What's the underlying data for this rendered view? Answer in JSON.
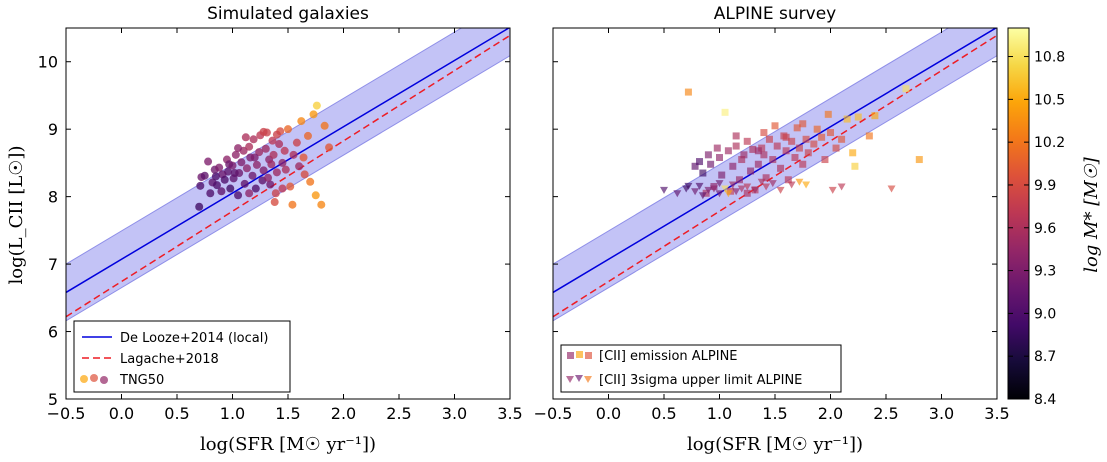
{
  "chart_data": [
    {
      "type": "scatter",
      "title": "Simulated galaxies",
      "xlabel": "log(SFR [M☉ yr⁻¹])",
      "ylabel": "log(L_CII [L☉])",
      "xlim": [
        -0.5,
        3.5
      ],
      "ylim": [
        5,
        10.5
      ],
      "xticks": [
        "−0.5",
        "0.0",
        "0.5",
        "1.0",
        "1.5",
        "2.0",
        "2.5",
        "3.0",
        "3.5"
      ],
      "yticks": [
        "5",
        "6",
        "7",
        "8",
        "9",
        "10"
      ],
      "grid": false,
      "legend_position": "lower-left",
      "relations": [
        {
          "name": "De Looze+2014 (local)",
          "style": "solid",
          "color": "#0000dd",
          "x": [
            -0.5,
            3.5
          ],
          "y": [
            6.58,
            10.51
          ],
          "band_halfwidth": 0.42
        },
        {
          "name": "Lagache+2018",
          "style": "dashed",
          "color": "#ee1c24",
          "x": [
            -0.5,
            3.5
          ],
          "y": [
            6.22,
            10.39
          ]
        }
      ],
      "series": [
        {
          "name": "TNG50",
          "marker": "circle",
          "points": [
            [
              0.7,
              7.85
            ],
            [
              0.71,
              8.16
            ],
            [
              0.72,
              8.29
            ],
            [
              0.75,
              8.31
            ],
            [
              0.78,
              8.52
            ],
            [
              0.8,
              8.05
            ],
            [
              0.82,
              8.21
            ],
            [
              0.84,
              8.4
            ],
            [
              0.86,
              8.17
            ],
            [
              0.88,
              8.43
            ],
            [
              0.9,
              8.08
            ],
            [
              0.91,
              8.33
            ],
            [
              0.93,
              8.25
            ],
            [
              0.95,
              8.55
            ],
            [
              0.96,
              8.37
            ],
            [
              0.98,
              8.12
            ],
            [
              1.0,
              8.46
            ],
            [
              1.01,
              8.27
            ],
            [
              1.03,
              8.62
            ],
            [
              1.05,
              8.02
            ],
            [
              1.06,
              8.35
            ],
            [
              1.08,
              8.51
            ],
            [
              1.1,
              8.68
            ],
            [
              1.11,
              8.19
            ],
            [
              1.13,
              8.42
            ],
            [
              1.15,
              8.74
            ],
            [
              1.16,
              8.58
            ],
            [
              1.18,
              8.31
            ],
            [
              1.19,
              8.85
            ],
            [
              1.21,
              8.12
            ],
            [
              1.22,
              8.47
            ],
            [
              1.24,
              8.66
            ],
            [
              1.25,
              8.91
            ],
            [
              1.27,
              8.24
            ],
            [
              1.28,
              8.39
            ],
            [
              1.3,
              8.71
            ],
            [
              1.31,
              8.95
            ],
            [
              1.33,
              8.55
            ],
            [
              1.34,
              8.18
            ],
            [
              1.36,
              8.83
            ],
            [
              1.37,
              8.62
            ],
            [
              1.38,
              7.92
            ],
            [
              1.39,
              8.05
            ],
            [
              1.4,
              8.36
            ],
            [
              1.42,
              8.78
            ],
            [
              1.43,
              8.97
            ],
            [
              1.45,
              8.5
            ],
            [
              1.47,
              8.68
            ],
            [
              1.5,
              9.0
            ],
            [
              1.52,
              8.15
            ],
            [
              1.54,
              7.88
            ],
            [
              1.55,
              8.62
            ],
            [
              1.58,
              8.8
            ],
            [
              1.6,
              8.45
            ],
            [
              1.62,
              9.12
            ],
            [
              1.65,
              8.33
            ],
            [
              1.68,
              8.9
            ],
            [
              1.7,
              8.22
            ],
            [
              1.73,
              9.22
            ],
            [
              1.76,
              9.35
            ],
            [
              1.8,
              7.88
            ],
            [
              1.83,
              9.05
            ],
            [
              1.87,
              8.73
            ],
            [
              1.35,
              8.48
            ],
            [
              1.2,
              8.58
            ],
            [
              1.05,
              8.72
            ],
            [
              0.97,
              8.48
            ],
            [
              1.28,
              8.96
            ],
            [
              1.45,
              8.12
            ],
            [
              1.15,
              8.05
            ],
            [
              1.02,
              8.35
            ],
            [
              1.32,
              8.28
            ],
            [
              1.48,
              8.4
            ],
            [
              1.64,
              8.58
            ],
            [
              1.75,
              8.02
            ],
            [
              0.85,
              8.3
            ],
            [
              1.12,
              8.88
            ],
            [
              1.4,
              8.92
            ]
          ],
          "color_values": [
            8.9,
            9.0,
            9.2,
            9.1,
            9.3,
            9.0,
            9.1,
            9.2,
            9.0,
            9.3,
            9.1,
            9.2,
            9.0,
            9.4,
            9.1,
            8.9,
            9.3,
            9.1,
            9.4,
            9.0,
            9.2,
            9.3,
            9.5,
            9.1,
            9.4,
            9.6,
            9.3,
            9.2,
            9.6,
            9.0,
            9.4,
            9.5,
            9.7,
            9.1,
            9.3,
            9.5,
            9.8,
            9.4,
            9.2,
            9.7,
            9.6,
            9.9,
            9.8,
            9.5,
            9.6,
            9.9,
            9.4,
            9.7,
            10.1,
            10.0,
            10.2,
            9.6,
            9.8,
            9.5,
            10.3,
            9.9,
            10.1,
            10.2,
            10.4,
            10.7,
            10.3,
            10.2,
            10.0,
            9.5,
            9.3,
            9.4,
            9.2,
            9.8,
            9.7,
            9.4,
            9.1,
            9.4,
            9.6,
            10.0,
            10.4,
            9.0,
            9.6,
            9.8
          ]
        }
      ]
    },
    {
      "type": "scatter",
      "title": "ALPINE survey",
      "xlabel": "log(SFR [M☉ yr⁻¹])",
      "xlim": [
        -0.5,
        3.5
      ],
      "ylim": [
        5,
        10.5
      ],
      "xticks": [
        "−0.5",
        "0.0",
        "0.5",
        "1.0",
        "1.5",
        "2.0",
        "2.5",
        "3.0",
        "3.5"
      ],
      "grid": false,
      "legend_position": "lower-left",
      "relations": [
        {
          "name": "De Looze+2014 (local)",
          "style": "solid",
          "color": "#0000dd",
          "x": [
            -0.5,
            3.5
          ],
          "y": [
            6.58,
            10.51
          ],
          "band_halfwidth": 0.42
        },
        {
          "name": "Lagache+2018",
          "style": "dashed",
          "color": "#ee1c24",
          "x": [
            -0.5,
            3.5
          ],
          "y": [
            6.22,
            10.39
          ]
        }
      ],
      "series": [
        {
          "name": "[CII] emission ALPINE",
          "marker": "square",
          "points": [
            [
              0.72,
              9.55
            ],
            [
              0.78,
              8.45
            ],
            [
              0.82,
              8.52
            ],
            [
              0.85,
              8.35
            ],
            [
              0.88,
              8.05
            ],
            [
              0.9,
              8.62
            ],
            [
              0.92,
              8.48
            ],
            [
              0.95,
              8.15
            ],
            [
              0.98,
              8.72
            ],
            [
              1.0,
              8.58
            ],
            [
              1.02,
              8.32
            ],
            [
              1.05,
              9.25
            ],
            [
              1.08,
              8.68
            ],
            [
              1.1,
              8.08
            ],
            [
              1.12,
              8.45
            ],
            [
              1.15,
              8.75
            ],
            [
              1.18,
              8.25
            ],
            [
              1.2,
              8.55
            ],
            [
              1.22,
              8.62
            ],
            [
              1.25,
              8.82
            ],
            [
              1.28,
              8.38
            ],
            [
              1.3,
              8.7
            ],
            [
              1.32,
              8.1
            ],
            [
              1.35,
              8.48
            ],
            [
              1.38,
              8.72
            ],
            [
              1.4,
              8.62
            ],
            [
              1.42,
              8.28
            ],
            [
              1.45,
              8.85
            ],
            [
              1.48,
              8.55
            ],
            [
              1.5,
              9.05
            ],
            [
              1.52,
              8.75
            ],
            [
              1.55,
              8.42
            ],
            [
              1.58,
              8.9
            ],
            [
              1.6,
              8.68
            ],
            [
              1.62,
              8.25
            ],
            [
              1.65,
              8.82
            ],
            [
              1.68,
              8.58
            ],
            [
              1.7,
              9.02
            ],
            [
              1.72,
              8.72
            ],
            [
              1.75,
              8.48
            ],
            [
              1.78,
              8.85
            ],
            [
              1.8,
              8.65
            ],
            [
              1.85,
              8.78
            ],
            [
              1.88,
              9.0
            ],
            [
              1.92,
              8.88
            ],
            [
              1.95,
              8.55
            ],
            [
              1.98,
              9.22
            ],
            [
              2.0,
              8.95
            ],
            [
              2.05,
              8.72
            ],
            [
              2.1,
              8.85
            ],
            [
              2.15,
              9.15
            ],
            [
              2.2,
              8.65
            ],
            [
              2.25,
              9.18
            ],
            [
              2.35,
              8.9
            ],
            [
              2.4,
              9.2
            ],
            [
              2.22,
              8.45
            ],
            [
              2.68,
              9.6
            ],
            [
              2.8,
              8.55
            ],
            [
              1.25,
              8.05
            ],
            [
              1.4,
              8.95
            ],
            [
              1.6,
              8.88
            ],
            [
              1.75,
              9.08
            ],
            [
              1.15,
              8.9
            ],
            [
              1.35,
              8.68
            ]
          ],
          "color_values": [
            10.3,
            9.1,
            9.0,
            8.9,
            9.6,
            9.3,
            9.2,
            9.4,
            9.5,
            9.4,
            9.3,
            10.9,
            9.5,
            9.8,
            9.4,
            9.6,
            9.5,
            9.6,
            9.5,
            9.7,
            9.4,
            9.6,
            9.7,
            9.5,
            9.7,
            9.6,
            9.6,
            9.8,
            9.6,
            10.0,
            9.7,
            9.6,
            9.8,
            9.7,
            9.7,
            9.8,
            9.7,
            10.0,
            9.8,
            9.7,
            9.9,
            9.8,
            9.9,
            10.1,
            10.0,
            9.8,
            10.2,
            10.0,
            9.9,
            10.0,
            10.6,
            10.5,
            10.6,
            10.2,
            10.5,
            10.7,
            10.8,
            10.4,
            9.6,
            9.9,
            9.8,
            10.0,
            9.6,
            9.5
          ]
        },
        {
          "name": "[CII] 3sigma upper limit ALPINE",
          "marker": "triangle-down",
          "points": [
            [
              0.5,
              8.1
            ],
            [
              0.62,
              8.05
            ],
            [
              0.7,
              8.12
            ],
            [
              0.78,
              8.08
            ],
            [
              0.82,
              8.16
            ],
            [
              0.85,
              8.02
            ],
            [
              0.9,
              8.1
            ],
            [
              0.95,
              8.12
            ],
            [
              1.0,
              8.2
            ],
            [
              1.05,
              8.12
            ],
            [
              1.08,
              8.05
            ],
            [
              1.12,
              8.18
            ],
            [
              1.15,
              8.08
            ],
            [
              1.2,
              8.12
            ],
            [
              1.25,
              8.15
            ],
            [
              1.32,
              8.1
            ],
            [
              1.38,
              8.22
            ],
            [
              1.42,
              8.15
            ],
            [
              1.48,
              8.2
            ],
            [
              1.55,
              8.1
            ],
            [
              1.65,
              8.18
            ],
            [
              1.72,
              8.22
            ],
            [
              1.78,
              8.18
            ],
            [
              2.02,
              8.1
            ],
            [
              2.55,
              8.12
            ],
            [
              2.1,
              8.15
            ],
            [
              0.72,
              8.16
            ],
            [
              1.0,
              8.05
            ]
          ],
          "color_values": [
            9.0,
            9.1,
            8.9,
            9.2,
            9.0,
            9.1,
            9.3,
            9.4,
            9.2,
            10.8,
            10.5,
            9.5,
            9.4,
            9.6,
            9.7,
            9.5,
            9.6,
            9.7,
            9.5,
            9.8,
            9.7,
            10.4,
            10.5,
            9.8,
            9.9,
            9.7,
            8.9,
            9.2
          ]
        }
      ]
    }
  ],
  "colorbar": {
    "label": "log M* [M☉]",
    "colormap": "inferno",
    "range": [
      8.4,
      11.0
    ],
    "ticks": [
      "8.4",
      "8.7",
      "9.0",
      "9.3",
      "9.6",
      "9.9",
      "10.2",
      "10.5",
      "10.8"
    ]
  },
  "legend": {
    "left": [
      "De Looze+2014 (local)",
      "Lagache+2018",
      "TNG50"
    ],
    "right": [
      "[CII] emission ALPINE",
      "[CII] 3sigma upper limit ALPINE"
    ]
  }
}
